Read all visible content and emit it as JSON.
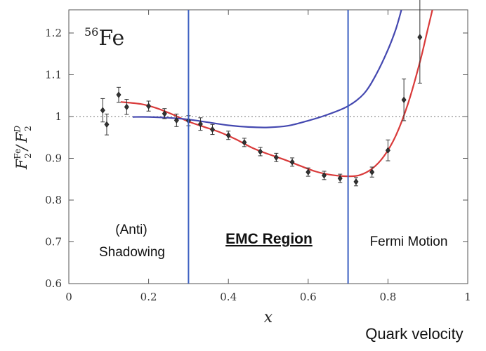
{
  "chart_data": {
    "type": "scatter",
    "nucleus_mass_number": "56",
    "nucleus_symbol": "Fe",
    "xlabel": "x",
    "ylabel": {
      "num": "F",
      "num_sup": "Fe",
      "num_sub": "2",
      "den": "F",
      "den_sup": "D",
      "den_sub": "2"
    },
    "xlim": [
      0,
      1
    ],
    "ylim": [
      0.6,
      1.25
    ],
    "x_ticks": [
      "0",
      "0.2",
      "0.4",
      "0.6",
      "0.8",
      "1"
    ],
    "y_ticks": [
      "0.6",
      "0.7",
      "0.8",
      "0.9",
      "1",
      "1.1",
      "1.2"
    ],
    "reference_line_y": 1.0,
    "data_points": [
      {
        "x": 0.085,
        "y": 1.015,
        "err": 0.028
      },
      {
        "x": 0.095,
        "y": 0.981,
        "err": 0.025
      },
      {
        "x": 0.125,
        "y": 1.052,
        "err": 0.018
      },
      {
        "x": 0.145,
        "y": 1.023,
        "err": 0.018
      },
      {
        "x": 0.2,
        "y": 1.025,
        "err": 0.012
      },
      {
        "x": 0.24,
        "y": 1.007,
        "err": 0.012
      },
      {
        "x": 0.27,
        "y": 0.991,
        "err": 0.015
      },
      {
        "x": 0.3,
        "y": 0.99,
        "err": 0.012
      },
      {
        "x": 0.33,
        "y": 0.982,
        "err": 0.015
      },
      {
        "x": 0.36,
        "y": 0.969,
        "err": 0.012
      },
      {
        "x": 0.4,
        "y": 0.955,
        "err": 0.01
      },
      {
        "x": 0.44,
        "y": 0.938,
        "err": 0.01
      },
      {
        "x": 0.48,
        "y": 0.916,
        "err": 0.01
      },
      {
        "x": 0.52,
        "y": 0.902,
        "err": 0.01
      },
      {
        "x": 0.56,
        "y": 0.891,
        "err": 0.01
      },
      {
        "x": 0.6,
        "y": 0.867,
        "err": 0.01
      },
      {
        "x": 0.64,
        "y": 0.859,
        "err": 0.01
      },
      {
        "x": 0.68,
        "y": 0.852,
        "err": 0.01
      },
      {
        "x": 0.72,
        "y": 0.844,
        "err": 0.01
      },
      {
        "x": 0.76,
        "y": 0.867,
        "err": 0.012
      },
      {
        "x": 0.8,
        "y": 0.919,
        "err": 0.025
      },
      {
        "x": 0.84,
        "y": 1.04,
        "err": 0.05
      },
      {
        "x": 0.88,
        "y": 1.19,
        "err": 0.11
      }
    ],
    "series": [
      {
        "color": "#d93a3a",
        "points": [
          [
            0.13,
            1.035
          ],
          [
            0.18,
            1.03
          ],
          [
            0.22,
            1.02
          ],
          [
            0.26,
            1.005
          ],
          [
            0.3,
            0.988
          ],
          [
            0.34,
            0.975
          ],
          [
            0.38,
            0.962
          ],
          [
            0.42,
            0.945
          ],
          [
            0.46,
            0.925
          ],
          [
            0.5,
            0.91
          ],
          [
            0.54,
            0.897
          ],
          [
            0.58,
            0.882
          ],
          [
            0.62,
            0.868
          ],
          [
            0.66,
            0.86
          ],
          [
            0.7,
            0.857
          ],
          [
            0.73,
            0.86
          ],
          [
            0.76,
            0.875
          ],
          [
            0.79,
            0.905
          ],
          [
            0.82,
            0.955
          ],
          [
            0.85,
            1.03
          ],
          [
            0.88,
            1.13
          ],
          [
            0.9,
            1.21
          ],
          [
            0.92,
            1.29
          ]
        ]
      },
      {
        "color": "#4448b0",
        "points": [
          [
            0.16,
            0.999
          ],
          [
            0.2,
            0.999
          ],
          [
            0.25,
            0.997
          ],
          [
            0.3,
            0.993
          ],
          [
            0.35,
            0.986
          ],
          [
            0.4,
            0.979
          ],
          [
            0.45,
            0.975
          ],
          [
            0.5,
            0.974
          ],
          [
            0.55,
            0.978
          ],
          [
            0.6,
            0.99
          ],
          [
            0.65,
            1.005
          ],
          [
            0.7,
            1.025
          ],
          [
            0.74,
            1.055
          ],
          [
            0.77,
            1.1
          ],
          [
            0.8,
            1.16
          ],
          [
            0.82,
            1.21
          ],
          [
            0.835,
            1.26
          ]
        ]
      }
    ],
    "region_boundaries": [
      0.3,
      0.7
    ],
    "boundary_color": "#3b5fc0",
    "regions": [
      {
        "line1": "(Anti)",
        "line2": "Shadowing"
      },
      {
        "line1": "EMC Region"
      },
      {
        "line1": "Fermi Motion"
      }
    ],
    "footer_label": "Quark velocity"
  }
}
